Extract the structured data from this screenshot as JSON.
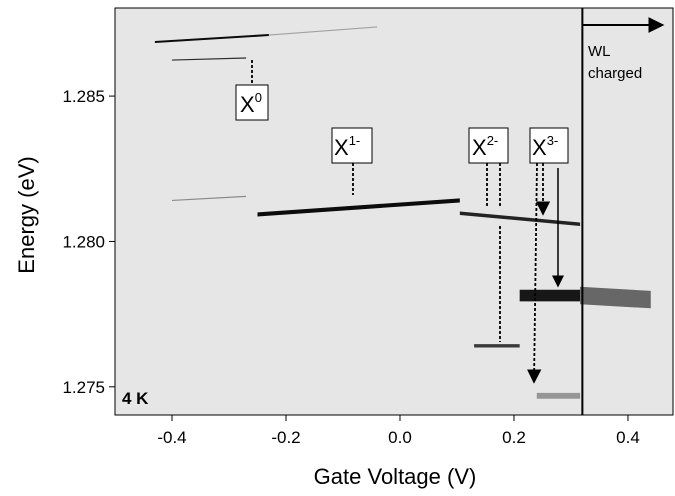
{
  "chart_data": {
    "type": "spectral-map",
    "x_label": "Gate Voltage (V)",
    "y_label": "Energy (eV)",
    "xlim": [
      -0.5,
      0.479
    ],
    "ylim": [
      1.27403,
      1.28803
    ],
    "xticks": [
      -0.4,
      -0.2,
      {
        "value": 0,
        "label": "0.0"
      },
      0.2,
      0.4
    ],
    "yticks": [
      {
        "value": 1.275,
        "label": "1.275"
      },
      {
        "value": 1.28,
        "label": "1.280"
      },
      {
        "value": 1.285,
        "label": "1.285"
      }
    ],
    "background_color": "#e6e6e6",
    "features": [
      {
        "x": [
          -0.43,
          -0.23
        ],
        "y": [
          1.28686,
          1.2871
        ],
        "linewidth": 7e-05,
        "intensity": 0.95
      },
      {
        "x": [
          -0.23,
          -0.04
        ],
        "y": [
          1.2871,
          1.28738
        ],
        "linewidth": 4e-05,
        "intensity": 0.3
      },
      {
        "x": [
          -0.4,
          -0.27
        ],
        "y": [
          1.28624,
          1.28631
        ],
        "linewidth": 4e-05,
        "intensity": 0.8
      },
      {
        "x": [
          -0.4,
          -0.27
        ],
        "y": [
          1.28141,
          1.28155
        ],
        "linewidth": 4e-05,
        "intensity": 0.4
      },
      {
        "x": [
          -0.25,
          0.105
        ],
        "y": [
          1.28093,
          1.28141
        ],
        "linewidth": 0.00014,
        "intensity": 0.95
      },
      {
        "x": [
          0.105,
          0.316
        ],
        "y": [
          1.28097,
          1.28059
        ],
        "linewidth": 0.00012,
        "intensity": 0.85
      },
      {
        "x": [
          0.13,
          0.21
        ],
        "y": [
          1.27641,
          1.27641
        ],
        "linewidth": 0.00012,
        "intensity": 0.75
      },
      {
        "x": [
          0.21,
          0.316
        ],
        "y": [
          1.27814,
          1.27814
        ],
        "linewidth": 0.0004,
        "intensity": 0.9
      },
      {
        "x": [
          0.316,
          0.44
        ],
        "y": [
          1.27814,
          1.278
        ],
        "linewidth": 0.0006,
        "intensity": 0.55
      },
      {
        "x": [
          0.24,
          0.316
        ],
        "y": [
          1.27469,
          1.27469
        ],
        "linewidth": 0.0002,
        "intensity": 0.35
      }
    ],
    "wl_boundary": 0.32,
    "annotations": [
      {
        "text": "X",
        "sup": "0"
      },
      {
        "text": "X",
        "sup": "1-"
      },
      {
        "text": "X",
        "sup": "2-"
      },
      {
        "text": "X",
        "sup": "3-"
      }
    ],
    "temperature": "4 K",
    "wl_label": [
      "WL",
      "charged"
    ]
  }
}
